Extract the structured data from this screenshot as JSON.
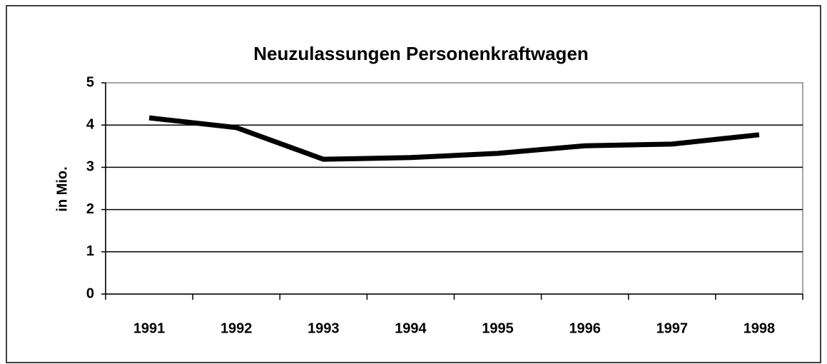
{
  "chart_data": {
    "type": "line",
    "title": "Neuzulassungen Personenkraftwagen",
    "y_label": "in Mio.",
    "categories": [
      "1991",
      "1992",
      "1993",
      "1994",
      "1995",
      "1996",
      "1997",
      "1998"
    ],
    "series": [
      {
        "name": "Neuzulassungen",
        "color": "#000000",
        "values": [
          4.17,
          3.94,
          3.19,
          3.23,
          3.33,
          3.51,
          3.55,
          3.77
        ]
      }
    ],
    "ylim": [
      0,
      5
    ],
    "yticks": [
      0,
      1,
      2,
      3,
      4,
      5
    ],
    "grid": true,
    "legend": false
  }
}
